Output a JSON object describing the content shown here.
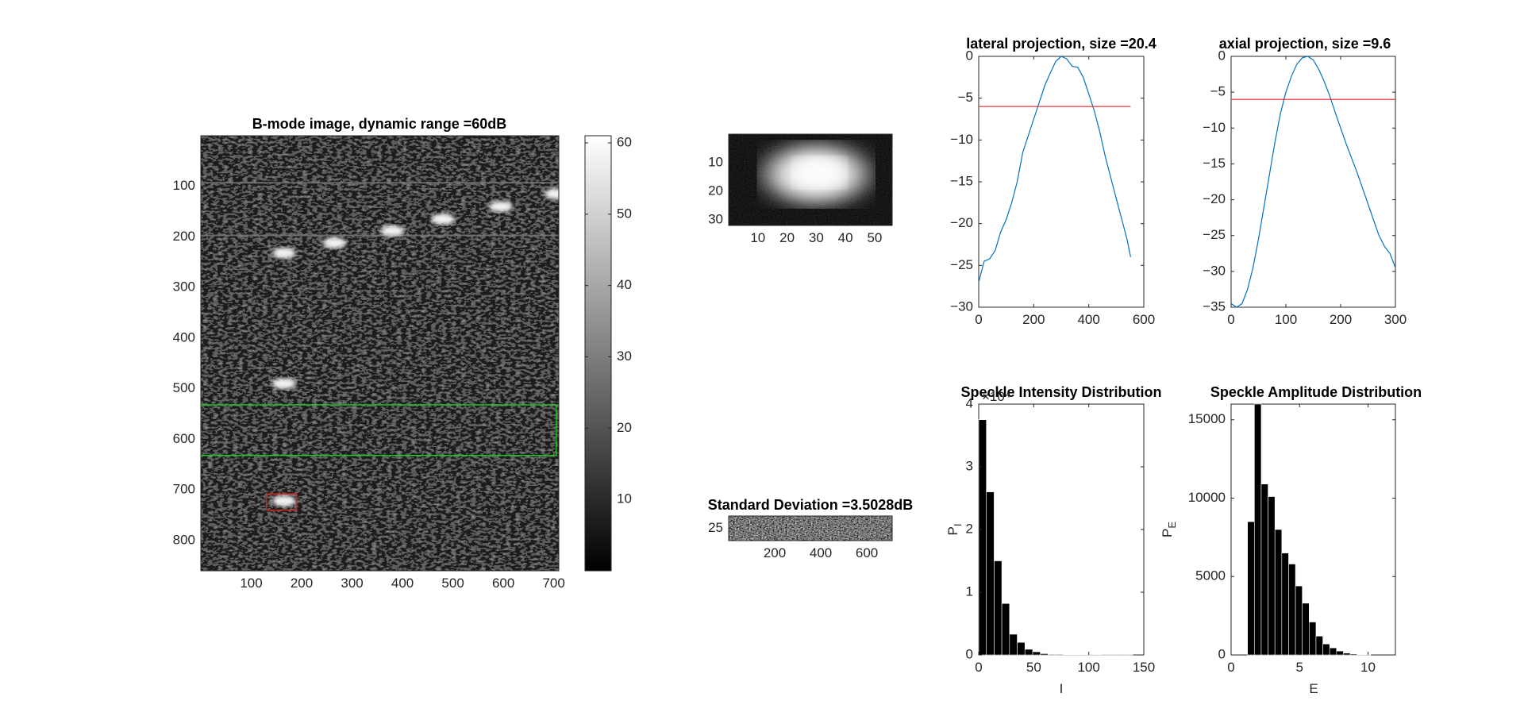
{
  "figure": {
    "background": "#ffffff"
  },
  "chart_data": [
    {
      "type": "heatmap",
      "title": "B-mode image, dynamic range =60dB",
      "xlim": [
        0,
        710
      ],
      "ylim": [
        0,
        860
      ],
      "y_reversed": true,
      "xticks": [
        100,
        200,
        300,
        400,
        500,
        600,
        700
      ],
      "yticks": [
        100,
        200,
        300,
        400,
        500,
        600,
        700,
        800
      ],
      "colormap": "gray",
      "colorbar": {
        "ticks": [
          10,
          20,
          30,
          40,
          50,
          60
        ],
        "range": [
          0,
          61
        ]
      },
      "point_targets": [
        {
          "x": 165,
          "y": 232
        },
        {
          "x": 265,
          "y": 212
        },
        {
          "x": 380,
          "y": 188
        },
        {
          "x": 480,
          "y": 165
        },
        {
          "x": 595,
          "y": 140
        },
        {
          "x": 705,
          "y": 115
        },
        {
          "x": 165,
          "y": 490
        },
        {
          "x": 165,
          "y": 722
        }
      ],
      "horizontal_lines_y": [
        93,
        197
      ],
      "roi_green": {
        "x": [
          0,
          705
        ],
        "y": [
          532,
          632
        ],
        "color": "#22c322"
      },
      "roi_red": {
        "x": [
          130,
          190
        ],
        "y": [
          708,
          740
        ],
        "color": "#d42020"
      }
    },
    {
      "type": "heatmap",
      "title": "",
      "xlim": [
        0,
        56
      ],
      "ylim": [
        0,
        32
      ],
      "xticks": [
        10,
        20,
        30,
        40,
        50
      ],
      "yticks": [
        10,
        20,
        30
      ],
      "colormap": "gray",
      "blob_center": {
        "x": 30,
        "y": 14
      }
    },
    {
      "type": "heatmap",
      "title": "Standard Deviation =3.5028dB",
      "xlim": [
        0,
        710
      ],
      "ylim": [
        0,
        50
      ],
      "xticks": [
        200,
        400,
        600
      ],
      "yticks": [
        25
      ],
      "colormap": "gray"
    },
    {
      "type": "line",
      "title": "lateral projection, size =20.4",
      "xlim": [
        0,
        600
      ],
      "ylim": [
        -30,
        0
      ],
      "xticks": [
        0,
        200,
        400,
        600
      ],
      "yticks": [
        0,
        -5,
        -10,
        -15,
        -20,
        -25,
        -30
      ],
      "series": [
        {
          "color": "#0072bd",
          "x": [
            0,
            20,
            40,
            60,
            80,
            100,
            120,
            140,
            160,
            180,
            200,
            220,
            240,
            260,
            280,
            300,
            320,
            340,
            360,
            380,
            400,
            420,
            440,
            460,
            480,
            500,
            520,
            540,
            552
          ],
          "y": [
            -27,
            -24.5,
            -24.2,
            -23.2,
            -21,
            -19.5,
            -17.5,
            -15,
            -11.5,
            -9.5,
            -7.5,
            -5.5,
            -3.5,
            -2,
            -0.6,
            0,
            -0.3,
            -1.2,
            -1.3,
            -2.5,
            -4.5,
            -6.5,
            -9,
            -12,
            -14.5,
            -17,
            -19.5,
            -22,
            -24
          ]
        },
        {
          "color": "#e8262c",
          "x": [
            0,
            552
          ],
          "y": [
            -6,
            -6
          ]
        }
      ]
    },
    {
      "type": "line",
      "title": "axial projection, size =9.6",
      "xlim": [
        0,
        300
      ],
      "ylim": [
        -35,
        0
      ],
      "xticks": [
        0,
        100,
        200,
        300
      ],
      "yticks": [
        0,
        -5,
        -10,
        -15,
        -20,
        -25,
        -30,
        -35
      ],
      "series": [
        {
          "color": "#0072bd",
          "x": [
            0,
            10,
            20,
            30,
            40,
            50,
            60,
            70,
            80,
            90,
            100,
            110,
            120,
            130,
            140,
            150,
            160,
            170,
            180,
            190,
            200,
            210,
            220,
            230,
            240,
            250,
            260,
            270,
            280,
            290,
            300
          ],
          "y": [
            -34.5,
            -35,
            -34.5,
            -32.5,
            -29.5,
            -25.5,
            -21,
            -16.5,
            -12,
            -8,
            -5,
            -2.8,
            -1.1,
            -0.2,
            0,
            -0.5,
            -1.8,
            -3.5,
            -5.5,
            -7.8,
            -10,
            -12.2,
            -14.2,
            -16.2,
            -18.4,
            -20.6,
            -22.8,
            -25,
            -26.5,
            -27.5,
            -29.5
          ]
        },
        {
          "color": "#e8262c",
          "x": [
            0,
            300
          ],
          "y": [
            -6,
            -6
          ]
        }
      ]
    },
    {
      "type": "bar",
      "title": "Speckle Intensity Distribution",
      "xlabel": "I",
      "ylabel": "P",
      "ylabel_subscript": "I",
      "exponent_label": "×10⁴",
      "xlim": [
        0,
        150
      ],
      "ylim": [
        0,
        4
      ],
      "xticks": [
        0,
        50,
        100,
        150
      ],
      "yticks": [
        0,
        1,
        2,
        3,
        4
      ],
      "bin_width": 7,
      "bin_edges_start": 0,
      "values": [
        3.75,
        2.6,
        1.5,
        0.82,
        0.33,
        0.2,
        0.09,
        0.05,
        0.02,
        0.01,
        0.01,
        0.005,
        0.004,
        0.003,
        0.002,
        0.002,
        0.001,
        0.001,
        0.001,
        0.001
      ],
      "bar_color": "#000000"
    },
    {
      "type": "bar",
      "title": "Speckle Amplitude Distribution",
      "xlabel": "E",
      "ylabel": "P",
      "ylabel_subscript": "E",
      "xlim": [
        0,
        12
      ],
      "ylim": [
        0,
        16000
      ],
      "xticks": [
        0,
        5,
        10
      ],
      "yticks": [
        0,
        5000,
        10000,
        15000
      ],
      "bin_width": 0.5,
      "bin_edges_start": 1.2,
      "values": [
        8500,
        16000,
        10900,
        10100,
        8000,
        6500,
        5800,
        4400,
        3300,
        2100,
        1200,
        700,
        450,
        250,
        120,
        60,
        30,
        15
      ],
      "bar_color": "#000000"
    }
  ]
}
